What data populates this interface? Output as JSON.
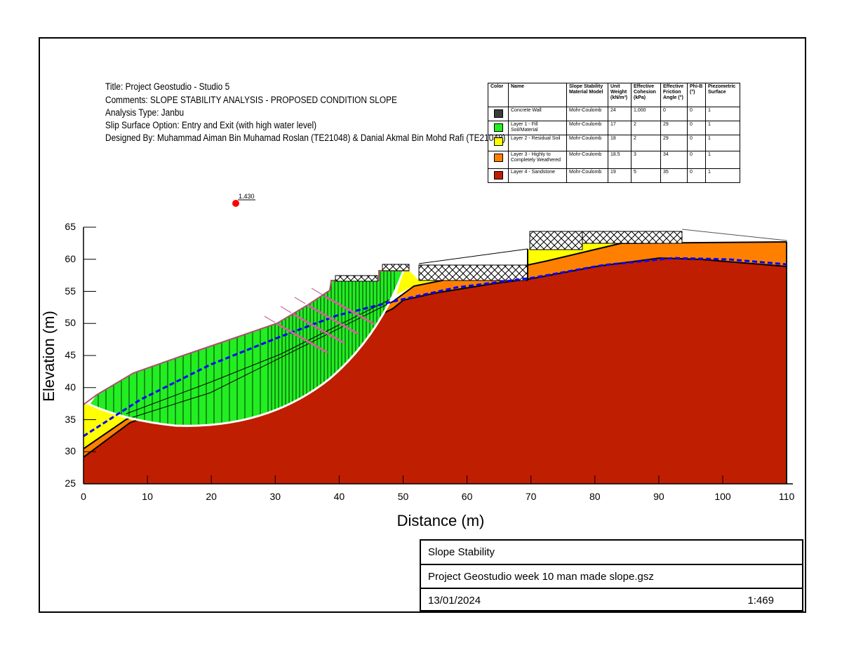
{
  "header": {
    "title": "Title: Project Geostudio - Studio 5",
    "comments": "Comments: SLOPE STABILITY ANALYSIS - PROPOSED CONDITION SLOPE",
    "analysis": "Analysis Type: Janbu",
    "slip": "Slip Surface Option: Entry and Exit (with high water level)",
    "designed": "Designed By: Muhammad Aiman Bin Muhamad Roslan (TE21048) & Danial Akmal Bin Mohd Rafi (TE21048)"
  },
  "legend": {
    "columns": [
      "Color",
      "Name",
      "Slope Stability Material Model",
      "Unit Weight (kN/m³)",
      "Effective Cohesion (kPa)",
      "Effective Friction Angle (°)",
      "Phi-B (°)",
      "Piezometric Surface"
    ],
    "rows": [
      {
        "color": "#3c3c3c",
        "name": "Concrete Wall",
        "model": "Mohr-Coulomb",
        "unit_weight": "24",
        "cohesion": "1,000",
        "friction": "0",
        "phib": "0",
        "piezo": "1"
      },
      {
        "color": "#22ee22",
        "name": "Layer 1 - Fill Soil/Material",
        "model": "Mohr-Coulomb",
        "unit_weight": "17",
        "cohesion": "2",
        "friction": "29",
        "phib": "0",
        "piezo": "1"
      },
      {
        "color": "#ffff00",
        "name": "Layer 2 - Residual Soil",
        "model": "Mohr-Coulomb",
        "unit_weight": "18",
        "cohesion": "2",
        "friction": "29",
        "phib": "0",
        "piezo": "1"
      },
      {
        "color": "#ff8000",
        "name": "Layer 3 - Highly to Completely Weathered",
        "model": "Mohr-Coulomb",
        "unit_weight": "18.5",
        "cohesion": "3",
        "friction": "34",
        "phib": "0",
        "piezo": "1"
      },
      {
        "color": "#c01e00",
        "name": "Layer 4 - Sandstone",
        "model": "Mohr-Coulomb",
        "unit_weight": "19",
        "cohesion": "5",
        "friction": "35",
        "phib": "0",
        "piezo": "1"
      }
    ]
  },
  "factor_of_safety": "1.430",
  "axes": {
    "xlabel": "Distance (m)",
    "ylabel": "Elevation (m)",
    "xticks": [
      "0",
      "10",
      "20",
      "30",
      "40",
      "50",
      "60",
      "70",
      "80",
      "90",
      "100",
      "110"
    ],
    "yticks": [
      "25",
      "30",
      "35",
      "40",
      "45",
      "50",
      "55",
      "60",
      "65"
    ]
  },
  "title_block": {
    "analysis_name": "Slope Stability",
    "file": "Project Geostudio week 10 man made slope.gsz",
    "date": "13/01/2024",
    "scale": "1:469"
  },
  "colors": {
    "fill": "#22ee22",
    "residual": "#ffff00",
    "weathered": "#ff8000",
    "sandstone": "#c01e00",
    "water": "#0000ff",
    "anchor": "#cc6699"
  }
}
